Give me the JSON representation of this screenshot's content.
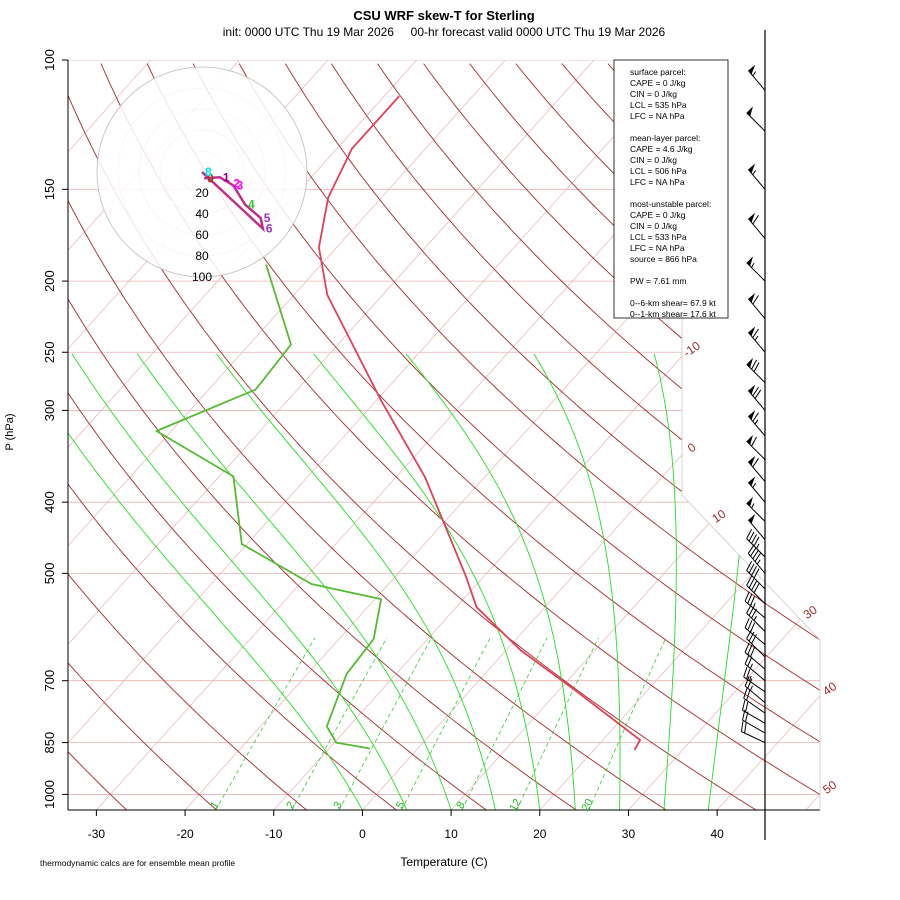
{
  "chart_data": {
    "type": "skewt",
    "title": "CSU WRF skew-T for Sterling",
    "subtitle": "init: 0000 UTC Thu 19 Mar 2026     00-hr forecast valid 0000 UTC Thu 19 Mar 2026",
    "xlabel": "Temperature (C)",
    "ylabel": "P (hPa)",
    "note": "thermodynamic calcs are for ensemble mean profile",
    "log_y": true,
    "ylim": [
      1050,
      100
    ],
    "yticks": [
      100,
      150,
      200,
      250,
      300,
      400,
      500,
      700,
      850,
      1000
    ],
    "xlim": [
      -33.2,
      51.6
    ],
    "xticks": [
      -30,
      -20,
      -10,
      0,
      10,
      20,
      30,
      40
    ],
    "grid": true,
    "isotherm_labels": [
      -10,
      0,
      10,
      30,
      40,
      50
    ],
    "mixing_ratio_labels": [
      1,
      2,
      3,
      5,
      8,
      12,
      20
    ],
    "series": [
      {
        "color": "#e0405a",
        "pressure": [
          870,
          843,
          721,
          636,
          556,
          503,
          370,
          290,
          209,
          180,
          154,
          132,
          112
        ],
        "temperature": [
          24.6,
          24.2,
          11.8,
          1.6,
          -7.7,
          -12.2,
          -26.7,
          -39.6,
          -56.2,
          -62,
          -66,
          -68.3,
          -68.3
        ]
      },
      {
        "color": "#55bb33",
        "pressure": [
          866,
          850,
          808,
          685,
          614,
          542,
          517,
          456,
          369,
          320,
          281,
          244,
          190
        ],
        "temperature": [
          -5.4,
          -9.8,
          -12.5,
          -15.6,
          -16.1,
          -19.3,
          -28.7,
          -40.6,
          -48.4,
          -61.7,
          -54.7,
          -55.3,
          -66.2
        ]
      }
    ],
    "wind": {
      "pressure": [
        110,
        125,
        150,
        175,
        200,
        225,
        250,
        275,
        300,
        325,
        350,
        375,
        400,
        425,
        450,
        475,
        500,
        525,
        550,
        575,
        600,
        625,
        650,
        675,
        700,
        725,
        750,
        775,
        800,
        825,
        850
      ],
      "speed": [
        55,
        50,
        55,
        60,
        55,
        60,
        65,
        70,
        70,
        65,
        60,
        60,
        55,
        55,
        50,
        45,
        45,
        40,
        40,
        35,
        35,
        30,
        30,
        30,
        25,
        25,
        25,
        20,
        20,
        20,
        20
      ],
      "direction": [
        320,
        315,
        320,
        320,
        315,
        320,
        320,
        315,
        320,
        320,
        315,
        320,
        320,
        315,
        320,
        315,
        320,
        315,
        315,
        310,
        315,
        310,
        315,
        310,
        310,
        305,
        310,
        305,
        300,
        300,
        295
      ]
    },
    "hodograph": {
      "rings": [
        20,
        40,
        60,
        80,
        100
      ],
      "labels": [
        "0",
        "1",
        "2",
        "3",
        "4",
        "5",
        "6",
        "8"
      ],
      "u": [
        2,
        17,
        27,
        30,
        41,
        56,
        58,
        0
      ],
      "v": [
        -6,
        -5,
        -11,
        -13,
        -31,
        -44,
        -54,
        0
      ],
      "colors": [
        "#8b4513",
        "#8b008b",
        "#ff00ff",
        "#ff00ff",
        "#32cd32",
        "#9932cc",
        "#9932cc",
        "#00e5ee"
      ]
    },
    "stats": [
      [
        "surface parcel:",
        "CAPE = 0 J/kg",
        "CIN = 0 J/kg",
        "LCL = 535 hPa",
        "LFC = NA hPa"
      ],
      [
        "mean-layer parcel:",
        "CAPE = 4.6 J/kg",
        "CIN = 0 J/kg",
        "LCL = 506 hPa",
        "LFC = NA hPa"
      ],
      [
        "most-unstable parcel:",
        "CAPE = 0 J/kg",
        "CIN = 0 J/kg",
        "LCL = 533 hPa",
        "LFC = NA hPa",
        "source = 866 hPa"
      ],
      [
        "PW =  7.61 mm"
      ],
      [
        "0--6-km shear= 67.9 kt",
        "0--1-km shear= 17.6 kt"
      ]
    ]
  }
}
